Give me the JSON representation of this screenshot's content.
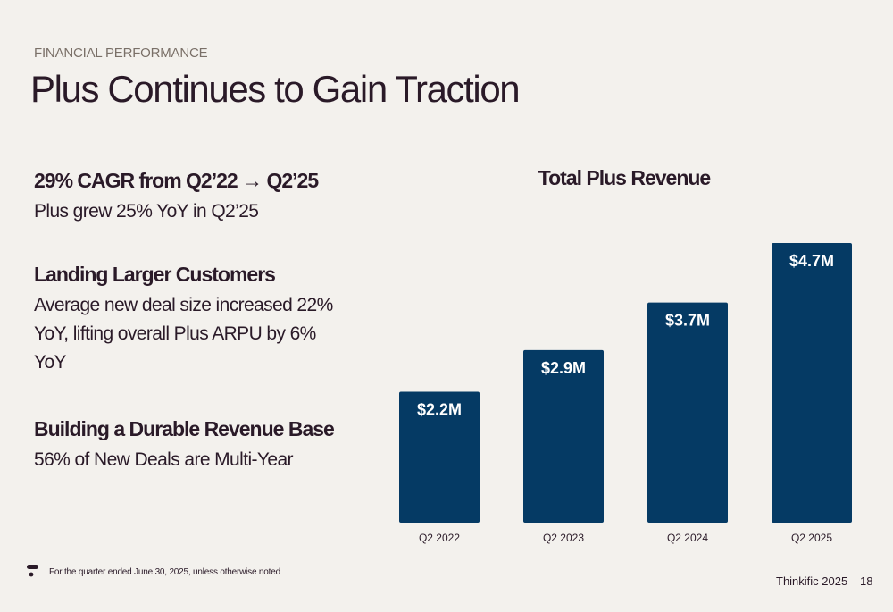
{
  "header": {
    "eyebrow": "FINANCIAL PERFORMANCE",
    "title": "Plus Continues to Gain Traction"
  },
  "points": [
    {
      "heading": "29% CAGR from Q2’22 → Q2’25",
      "body": "Plus grew 25% YoY in Q2’25"
    },
    {
      "heading": "Landing Larger Customers",
      "body": "Average new deal size increased 22% YoY, lifting overall Plus ARPU by 6% YoY"
    },
    {
      "heading": "Building a Durable Revenue Base",
      "body": "56% of New Deals are Multi-Year"
    }
  ],
  "chart_data": {
    "type": "bar",
    "title": "Total Plus Revenue",
    "categories": [
      "Q2 2022",
      "Q2 2023",
      "Q2 2024",
      "Q2 2025"
    ],
    "values": [
      2.2,
      2.9,
      3.7,
      4.7
    ],
    "value_labels": [
      "$2.2M",
      "$2.9M",
      "$3.7M",
      "$4.7M"
    ],
    "unit": "$M",
    "xlabel": "",
    "ylabel": "",
    "grid": false,
    "bar_color": "#053a64",
    "label_color": "#ffffff"
  },
  "footer": {
    "footnote": "For the quarter ended June 30, 2025, unless otherwise noted",
    "brand": "Thinkific 2025",
    "page_number": "18"
  },
  "colors": {
    "background": "#f3f1ed",
    "text": "#2a1a28",
    "muted": "#7a7068",
    "bar": "#053a64"
  },
  "icons": {
    "footnote": "thinkific-t-icon"
  }
}
